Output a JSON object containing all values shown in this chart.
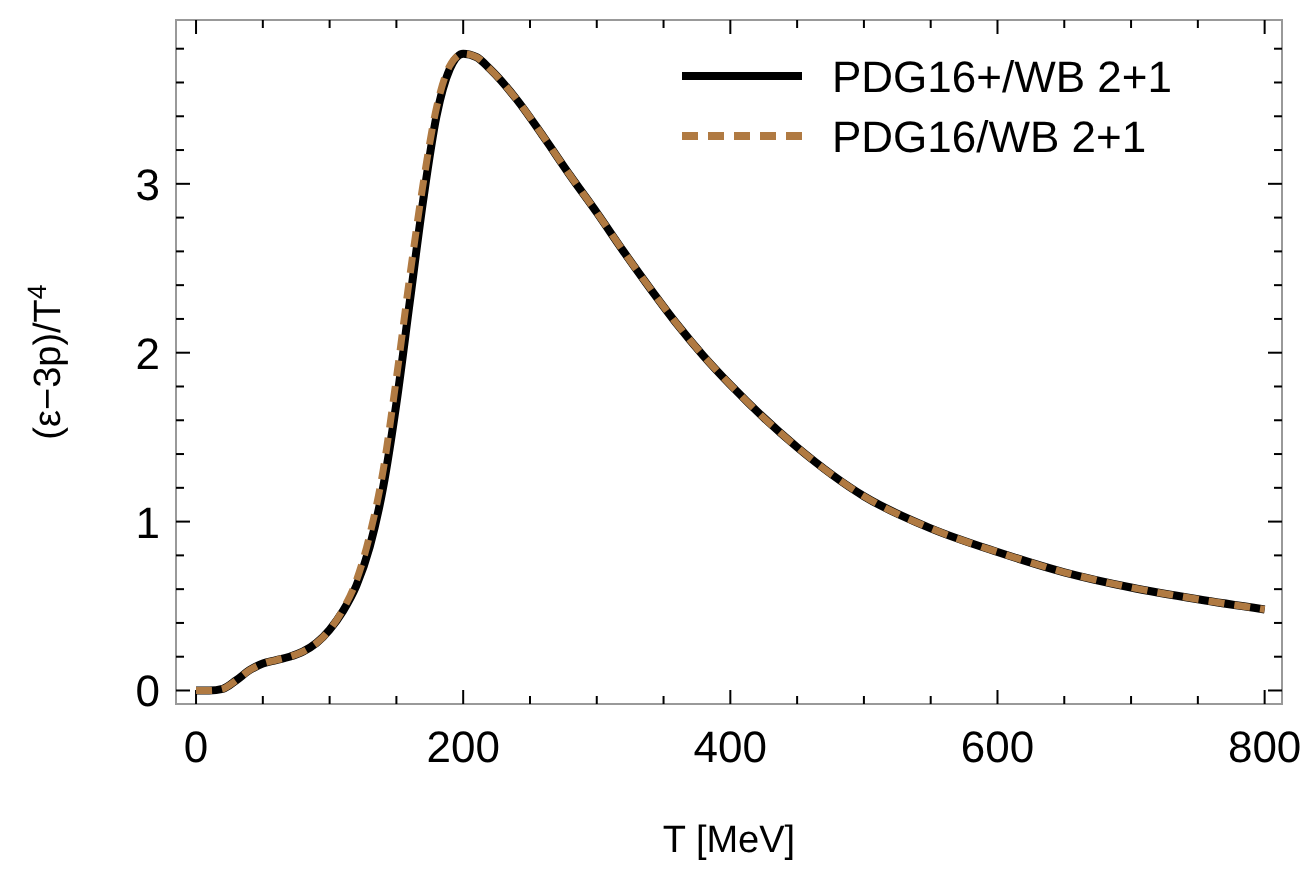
{
  "chart_data": {
    "type": "line",
    "xlabel": "T [MeV]",
    "ylabel": "(ε−3p)/T$^{4}$",
    "xlim": [
      -15,
      813
    ],
    "ylim": [
      -0.08,
      3.97
    ],
    "xticks": [
      0,
      {
        "value": 50,
        "label": null
      },
      {
        "value": 100,
        "label": null
      },
      {
        "value": 150,
        "label": null
      },
      200,
      {
        "value": 250,
        "label": null
      },
      {
        "value": 300,
        "label": null
      },
      {
        "value": 350,
        "label": null
      },
      400,
      {
        "value": 450,
        "label": null
      },
      {
        "value": 500,
        "label": null
      },
      {
        "value": 550,
        "label": null
      },
      600,
      {
        "value": 650,
        "label": null
      },
      {
        "value": 700,
        "label": null
      },
      {
        "value": 750,
        "label": null
      },
      800
    ],
    "yticks": [
      0,
      {
        "value": 0.2,
        "label": null
      },
      {
        "value": 0.4,
        "label": null
      },
      {
        "value": 0.6,
        "label": null
      },
      {
        "value": 0.8,
        "label": null
      },
      1,
      {
        "value": 1.2,
        "label": null
      },
      {
        "value": 1.4,
        "label": null
      },
      {
        "value": 1.6,
        "label": null
      },
      {
        "value": 1.8,
        "label": null
      },
      2,
      {
        "value": 2.2,
        "label": null
      },
      {
        "value": 2.4,
        "label": null
      },
      {
        "value": 2.6,
        "label": null
      },
      {
        "value": 2.8,
        "label": null
      },
      3,
      {
        "value": 3.2,
        "label": null
      },
      {
        "value": 3.4,
        "label": null
      },
      {
        "value": 3.6,
        "label": null
      },
      {
        "value": 3.8,
        "label": null
      }
    ],
    "x": [
      0,
      10,
      20,
      30,
      40,
      50,
      60,
      70,
      80,
      90,
      100,
      110,
      120,
      130,
      140,
      150,
      160,
      170,
      180,
      190,
      200,
      210,
      220,
      240,
      260,
      280,
      300,
      320,
      340,
      360,
      380,
      400,
      450,
      500,
      550,
      600,
      650,
      700,
      750,
      800
    ],
    "series": [
      {
        "name": "PDG16+/WB 2+1",
        "color": "#000000",
        "line_style": "solid",
        "values": [
          0,
          0,
          0.01,
          0.06,
          0.12,
          0.16,
          0.18,
          0.2,
          0.23,
          0.28,
          0.36,
          0.47,
          0.62,
          0.85,
          1.2,
          1.7,
          2.3,
          2.9,
          3.4,
          3.68,
          3.77,
          3.75,
          3.68,
          3.5,
          3.28,
          3.05,
          2.83,
          2.6,
          2.38,
          2.17,
          1.98,
          1.81,
          1.44,
          1.15,
          0.96,
          0.82,
          0.7,
          0.61,
          0.54,
          0.48
        ]
      },
      {
        "name": "PDG16/WB 2+1",
        "color": "#b07a42",
        "line_style": "dashed",
        "values": [
          0,
          0,
          0.01,
          0.06,
          0.12,
          0.16,
          0.18,
          0.2,
          0.23,
          0.28,
          0.36,
          0.48,
          0.65,
          0.92,
          1.3,
          1.85,
          2.45,
          3.0,
          3.45,
          3.7,
          3.77,
          3.75,
          3.68,
          3.5,
          3.28,
          3.05,
          2.83,
          2.6,
          2.38,
          2.17,
          1.98,
          1.81,
          1.44,
          1.15,
          0.96,
          0.82,
          0.7,
          0.61,
          0.54,
          0.48
        ]
      }
    ],
    "legend": "top right",
    "grid": false,
    "marker": "none"
  }
}
